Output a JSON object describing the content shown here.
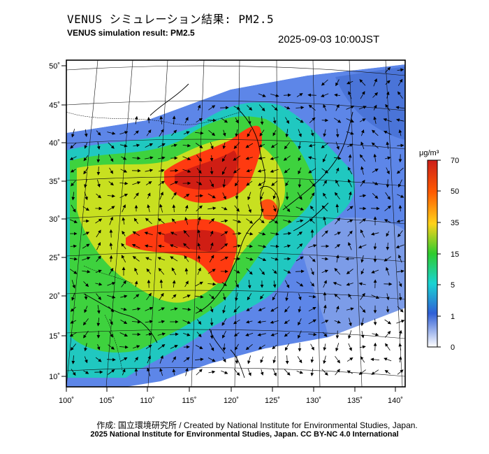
{
  "header": {
    "title_jp": "VENUS シミュレーション結果: PM2.5",
    "title_en": "VENUS simulation result: PM2.5",
    "datetime": "2025-09-03 10:00JST"
  },
  "map": {
    "lat_ticks": [
      "50˚",
      "45˚",
      "40˚",
      "35˚",
      "30˚",
      "25˚",
      "20˚",
      "15˚",
      "10˚"
    ],
    "lon_ticks": [
      "100˚",
      "105˚",
      "110˚",
      "115˚",
      "120˚",
      "125˚",
      "130˚",
      "135˚",
      "140˚"
    ],
    "lat_values": [
      50,
      45,
      40,
      35,
      30,
      25,
      20,
      15,
      10
    ],
    "lon_values": [
      100,
      105,
      110,
      115,
      120,
      125,
      130,
      135,
      140
    ]
  },
  "colorbar": {
    "unit": "μg/m³",
    "labels": [
      "70",
      "50",
      "35",
      "15",
      "5",
      "1",
      "0"
    ],
    "colors": [
      "#d42a1e",
      "#ff6a00",
      "#ffcf1a",
      "#2ecc2e",
      "#19d6d6",
      "#2f60d8",
      "#ffffff"
    ]
  },
  "footer": {
    "credit": "作成: 国立環境研究所 / Created by National Institute for Environmental Studies, Japan.",
    "copyright": "2025 National Institute for Environmental Studies, Japan. CC BY-NC 4.0 International"
  }
}
